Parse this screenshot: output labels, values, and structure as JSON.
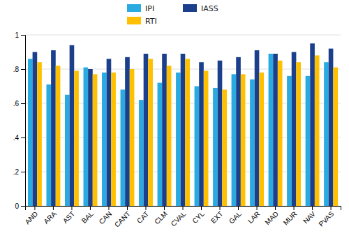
{
  "chart_data": {
    "type": "bar",
    "categories": [
      "AND",
      "ARA",
      "AST",
      "BAL",
      "CAN",
      "CANT",
      "CAT",
      "CLM",
      "CVAL",
      "CYL",
      "EXT",
      "GAL",
      "LAR",
      "MAD",
      "MUR",
      "NAV",
      "PVAS"
    ],
    "series": [
      {
        "name": "IPI",
        "color": "#29ABE2",
        "values": [
          0.86,
          0.71,
          0.65,
          0.81,
          0.78,
          0.68,
          0.62,
          0.72,
          0.78,
          0.7,
          0.69,
          0.77,
          0.74,
          0.89,
          0.76,
          0.76,
          0.84
        ]
      },
      {
        "name": "IASS",
        "color": "#1B3F8B",
        "values": [
          0.9,
          0.91,
          0.94,
          0.8,
          0.86,
          0.87,
          0.89,
          0.89,
          0.89,
          0.84,
          0.85,
          0.87,
          0.91,
          0.89,
          0.9,
          0.95,
          0.92
        ]
      },
      {
        "name": "RTI",
        "color": "#FFC000",
        "values": [
          0.84,
          0.82,
          0.79,
          0.77,
          0.78,
          0.8,
          0.86,
          0.82,
          0.86,
          0.79,
          0.68,
          0.77,
          0.78,
          0.85,
          0.84,
          0.88,
          0.81
        ]
      }
    ],
    "ylim": [
      0,
      1.0
    ],
    "yticks": [
      0,
      {
        "value": 0.2,
        "label": ".2"
      },
      {
        "value": 0.4,
        "label": ".4"
      },
      {
        "value": 0.6,
        "label": ".6"
      },
      {
        "value": 0.8,
        "label": ".8"
      },
      1
    ],
    "grid": true,
    "legend": "top"
  }
}
